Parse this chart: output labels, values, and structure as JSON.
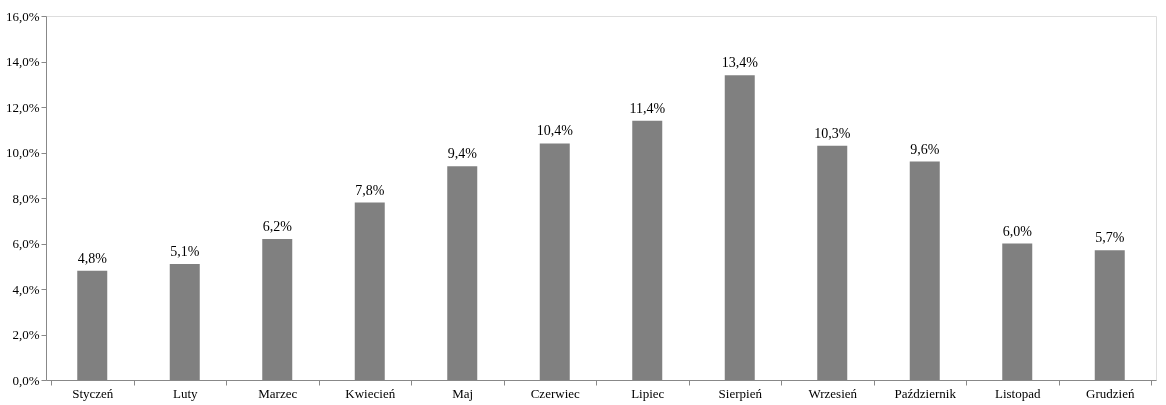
{
  "chart_data": {
    "type": "bar",
    "categories": [
      "Styczeń",
      "Luty",
      "Marzec",
      "Kwiecień",
      "Maj",
      "Czerwiec",
      "Lipiec",
      "Sierpień",
      "Wrzesień",
      "Październik",
      "Listopad",
      "Grudzień"
    ],
    "values": [
      4.8,
      5.1,
      6.2,
      7.8,
      9.4,
      10.4,
      11.4,
      13.4,
      10.3,
      9.6,
      6.0,
      5.7
    ],
    "value_labels": [
      "4,8%",
      "5,1%",
      "6,2%",
      "7,8%",
      "9,4%",
      "10,4%",
      "11,4%",
      "13,4%",
      "10,3%",
      "9,6%",
      "6,0%",
      "5,7%"
    ],
    "color": "#808080",
    "ylim": [
      0,
      16
    ],
    "yticks": [
      {
        "value": 0,
        "label": "0,0%"
      },
      {
        "value": 2,
        "label": "2,0%"
      },
      {
        "value": 4,
        "label": "4,0%"
      },
      {
        "value": 6,
        "label": "6,0%"
      },
      {
        "value": 8,
        "label": "8,0%"
      },
      {
        "value": 10,
        "label": "10,0%"
      },
      {
        "value": 12,
        "label": "12,0%"
      },
      {
        "value": 14,
        "label": "14,0%"
      },
      {
        "value": 16,
        "label": "16,0%"
      }
    ],
    "grid": false
  }
}
